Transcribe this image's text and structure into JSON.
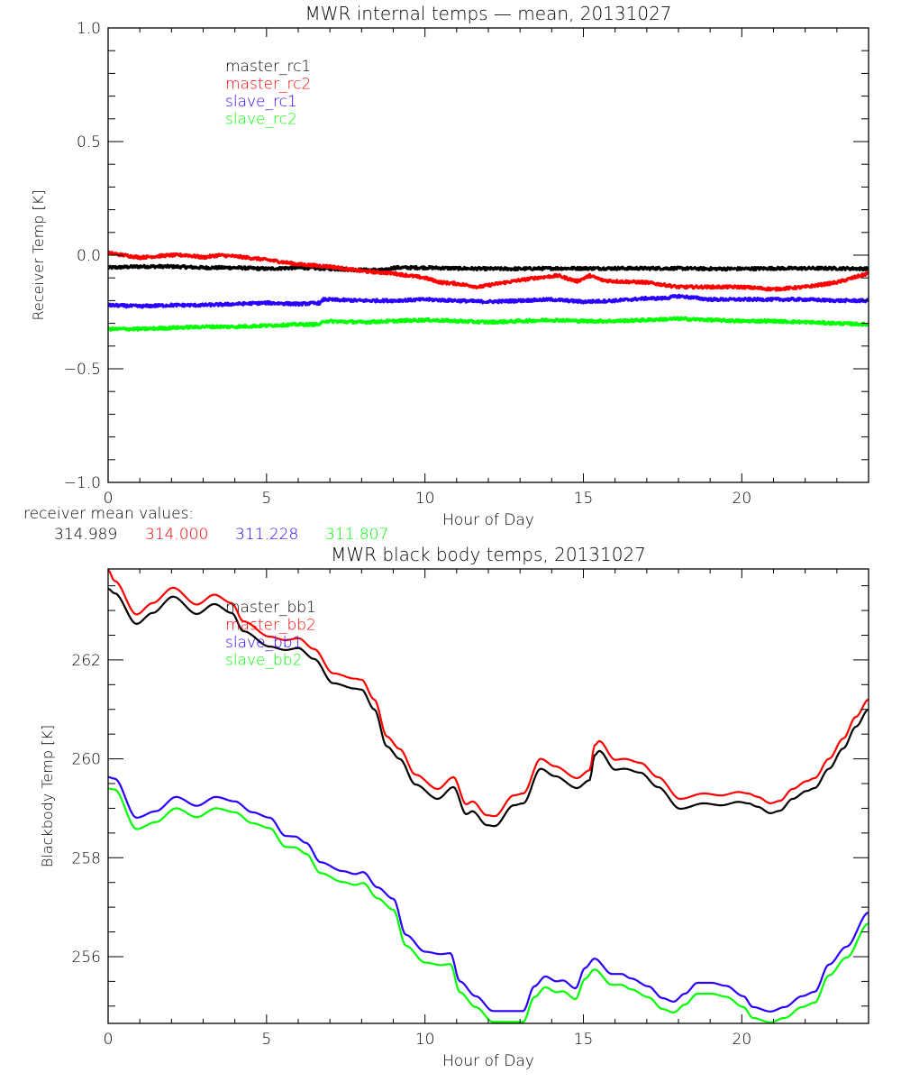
{
  "chart_data": [
    {
      "type": "line",
      "title": "MWR internal temps — mean, 20131027",
      "xlabel": "Hour of Day",
      "ylabel": "Receiver Temp [K]",
      "xlim": [
        0,
        24
      ],
      "ylim": [
        -1.0,
        1.0
      ],
      "xticks": [
        0,
        5,
        10,
        15,
        20
      ],
      "xtick_labels": [
        "0",
        "5",
        "10",
        "15",
        "20"
      ],
      "yticks": [
        -1.0,
        -0.5,
        0.0,
        0.5,
        1.0
      ],
      "ytick_labels": [
        "−1.0",
        "−0.5",
        "0.0",
        "0.5",
        "1.0"
      ],
      "grid": false,
      "legend_position": "top-left-inside",
      "series": [
        {
          "name": "master_rc1",
          "color": "#000000",
          "x": [
            0,
            1,
            2,
            3,
            4,
            5,
            6,
            7,
            8,
            8.8,
            9.0,
            10,
            11,
            12,
            13,
            14,
            15,
            16,
            17,
            18,
            19,
            20,
            21,
            22,
            23,
            24
          ],
          "y": [
            -0.055,
            -0.05,
            -0.05,
            -0.055,
            -0.055,
            -0.06,
            -0.055,
            -0.06,
            -0.065,
            -0.065,
            -0.055,
            -0.055,
            -0.058,
            -0.06,
            -0.06,
            -0.058,
            -0.058,
            -0.058,
            -0.058,
            -0.058,
            -0.06,
            -0.06,
            -0.058,
            -0.058,
            -0.058,
            -0.06
          ]
        },
        {
          "name": "master_rc2",
          "color": "#ff0000",
          "x": [
            0,
            0.5,
            1.0,
            1.5,
            2.0,
            2.5,
            3.0,
            3.5,
            4.0,
            5.0,
            6.0,
            7.0,
            7.5,
            8.0,
            9.0,
            10.0,
            10.5,
            11.0,
            11.7,
            12.3,
            13.0,
            13.5,
            14.2,
            14.8,
            15.2,
            15.6,
            16.0,
            17.0,
            18.0,
            19.0,
            20.0,
            21.0,
            22.0,
            22.5,
            23.0,
            23.5,
            24.0
          ],
          "y": [
            0.01,
            0.0,
            -0.01,
            -0.005,
            0.0,
            0.0,
            -0.01,
            0.0,
            -0.005,
            -0.02,
            -0.04,
            -0.05,
            -0.06,
            -0.07,
            -0.08,
            -0.1,
            -0.12,
            -0.125,
            -0.14,
            -0.125,
            -0.11,
            -0.1,
            -0.09,
            -0.115,
            -0.09,
            -0.11,
            -0.115,
            -0.12,
            -0.14,
            -0.14,
            -0.14,
            -0.15,
            -0.14,
            -0.13,
            -0.12,
            -0.1,
            -0.08
          ]
        },
        {
          "name": "slave_rc1",
          "color": "#2a00ff",
          "x": [
            0,
            1,
            2,
            3,
            4,
            5,
            6,
            6.7,
            6.8,
            8,
            9,
            10,
            11,
            12,
            13,
            14,
            15,
            16,
            17,
            17.5,
            18,
            19,
            20,
            21,
            22,
            23,
            24
          ],
          "y": [
            -0.22,
            -0.225,
            -0.22,
            -0.22,
            -0.215,
            -0.21,
            -0.215,
            -0.21,
            -0.195,
            -0.2,
            -0.2,
            -0.195,
            -0.2,
            -0.205,
            -0.2,
            -0.195,
            -0.205,
            -0.2,
            -0.19,
            -0.19,
            -0.18,
            -0.195,
            -0.195,
            -0.195,
            -0.195,
            -0.2,
            -0.2
          ]
        },
        {
          "name": "slave_rc2",
          "color": "#00ff00",
          "x": [
            0,
            1,
            2,
            3,
            4,
            5,
            6,
            6.7,
            6.8,
            8,
            9,
            10,
            11,
            12,
            13,
            14,
            15,
            16,
            17,
            18,
            19,
            20,
            21,
            22,
            23,
            24
          ],
          "y": [
            -0.325,
            -0.325,
            -0.32,
            -0.315,
            -0.315,
            -0.31,
            -0.305,
            -0.305,
            -0.29,
            -0.295,
            -0.29,
            -0.285,
            -0.29,
            -0.295,
            -0.29,
            -0.285,
            -0.29,
            -0.29,
            -0.285,
            -0.28,
            -0.285,
            -0.29,
            -0.29,
            -0.295,
            -0.3,
            -0.305
          ]
        }
      ]
    },
    {
      "type": "line",
      "title": "MWR black body temps, 20131027",
      "xlabel": "Hour of Day",
      "ylabel": "Blackbody Temp [K]",
      "xlim": [
        0,
        24
      ],
      "ylim": [
        254.65,
        263.84
      ],
      "xticks": [
        0,
        5,
        10,
        15,
        20
      ],
      "xtick_labels": [
        "0",
        "5",
        "10",
        "15",
        "20"
      ],
      "yticks": [
        256,
        258,
        260,
        262
      ],
      "ytick_labels": [
        "256",
        "258",
        "260",
        "262"
      ],
      "grid": false,
      "legend_position": "top-left-inside",
      "series": [
        {
          "name": "master_bb1",
          "color": "#000000",
          "x": [
            0,
            0.2,
            0.9,
            1.4,
            2.05,
            2.8,
            3.35,
            3.9,
            4.27,
            5.1,
            5.6,
            6.0,
            6.5,
            7.1,
            7.8,
            8.0,
            8.4,
            8.8,
            9.2,
            9.7,
            10.4,
            10.9,
            11.3,
            11.5,
            11.95,
            12.2,
            12.8,
            13.1,
            13.65,
            14.1,
            14.8,
            15.2,
            15.35,
            15.5,
            16.0,
            16.3,
            16.8,
            17.35,
            18.05,
            18.8,
            19.35,
            19.9,
            20.2,
            20.5,
            20.9,
            21.2,
            21.6,
            22.05,
            22.3,
            22.75,
            23.2,
            23.6,
            24.0
          ],
          "y": [
            263.44,
            263.35,
            262.73,
            262.95,
            263.28,
            262.93,
            263.13,
            262.95,
            262.58,
            262.27,
            262.2,
            262.24,
            262.02,
            261.53,
            261.42,
            261.4,
            261.0,
            260.25,
            260.0,
            259.48,
            259.19,
            259.43,
            258.88,
            258.94,
            258.66,
            258.64,
            259.06,
            259.1,
            259.8,
            259.65,
            259.41,
            259.57,
            260.07,
            260.16,
            259.78,
            259.8,
            259.72,
            259.43,
            258.99,
            259.1,
            259.06,
            259.13,
            259.1,
            259.03,
            258.9,
            258.95,
            259.19,
            259.35,
            259.41,
            259.8,
            260.21,
            260.65,
            261.0
          ]
        },
        {
          "name": "master_bb2",
          "color": "#ff0000",
          "x": [
            0,
            0.2,
            0.9,
            1.4,
            2.05,
            2.8,
            3.35,
            3.9,
            4.27,
            5.1,
            5.6,
            6.0,
            6.5,
            7.1,
            7.8,
            8.0,
            8.4,
            8.8,
            9.2,
            9.7,
            10.4,
            10.9,
            11.3,
            11.5,
            11.95,
            12.2,
            12.8,
            13.1,
            13.65,
            14.1,
            14.8,
            15.2,
            15.35,
            15.5,
            16.0,
            16.3,
            16.8,
            17.35,
            18.05,
            18.8,
            19.35,
            19.9,
            20.2,
            20.5,
            20.9,
            21.2,
            21.6,
            22.05,
            22.3,
            22.75,
            23.2,
            23.6,
            24.0
          ],
          "y": [
            263.82,
            263.6,
            262.92,
            263.15,
            263.46,
            263.12,
            263.32,
            263.15,
            262.78,
            262.47,
            262.4,
            262.44,
            262.22,
            261.73,
            261.62,
            261.6,
            261.2,
            260.45,
            260.2,
            259.68,
            259.39,
            259.63,
            259.08,
            259.14,
            258.86,
            258.84,
            259.26,
            259.3,
            260.0,
            259.85,
            259.61,
            259.77,
            260.27,
            260.36,
            259.98,
            260.0,
            259.92,
            259.63,
            259.19,
            259.3,
            259.26,
            259.33,
            259.3,
            259.23,
            259.1,
            259.15,
            259.39,
            259.55,
            259.61,
            260.0,
            260.41,
            260.85,
            261.2
          ]
        },
        {
          "name": "slave_bb1",
          "color": "#2a00ff",
          "x": [
            0,
            0.2,
            0.9,
            1.5,
            2.15,
            2.8,
            3.4,
            4.0,
            4.55,
            5.1,
            5.6,
            5.9,
            6.25,
            6.7,
            7.4,
            7.8,
            8.05,
            8.5,
            9.0,
            9.4,
            10.0,
            10.5,
            10.8,
            11.1,
            11.6,
            12.15,
            12.8,
            13.1,
            13.45,
            13.8,
            14.15,
            14.35,
            14.75,
            15.05,
            15.35,
            15.9,
            16.2,
            16.5,
            17.05,
            17.5,
            17.85,
            18.2,
            18.6,
            19.05,
            19.5,
            20.05,
            20.35,
            20.9,
            21.35,
            21.9,
            22.3,
            22.75,
            23.3,
            24.0
          ],
          "y": [
            259.63,
            259.6,
            258.81,
            258.94,
            259.23,
            259.05,
            259.23,
            259.14,
            258.92,
            258.81,
            258.44,
            258.43,
            258.3,
            257.91,
            257.73,
            257.67,
            257.71,
            257.4,
            257.17,
            256.44,
            256.1,
            256.05,
            256.07,
            255.5,
            255.2,
            254.9,
            254.9,
            254.9,
            255.4,
            255.6,
            255.5,
            255.52,
            255.36,
            255.77,
            255.96,
            255.65,
            255.65,
            255.56,
            255.4,
            255.16,
            255.09,
            255.25,
            255.47,
            255.47,
            255.41,
            255.2,
            254.98,
            254.89,
            254.98,
            255.2,
            255.29,
            255.84,
            256.2,
            256.89
          ]
        },
        {
          "name": "slave_bb2",
          "color": "#00ff00",
          "x": [
            0,
            0.2,
            0.9,
            1.5,
            2.15,
            2.8,
            3.4,
            4.0,
            4.55,
            5.1,
            5.6,
            5.9,
            6.25,
            6.7,
            7.4,
            7.8,
            8.05,
            8.5,
            9.0,
            9.4,
            10.0,
            10.5,
            10.8,
            11.1,
            11.6,
            12.15,
            12.8,
            13.1,
            13.45,
            13.8,
            14.15,
            14.35,
            14.75,
            15.05,
            15.35,
            15.9,
            16.2,
            16.5,
            17.05,
            17.5,
            17.85,
            18.2,
            18.6,
            19.05,
            19.5,
            20.05,
            20.35,
            20.9,
            21.35,
            21.9,
            22.3,
            22.75,
            23.3,
            24.0
          ],
          "y": [
            259.4,
            259.38,
            258.58,
            258.72,
            259.0,
            258.82,
            259.0,
            258.92,
            258.7,
            258.6,
            258.22,
            258.21,
            258.08,
            257.69,
            257.51,
            257.45,
            257.49,
            257.18,
            256.95,
            256.22,
            255.88,
            255.83,
            255.85,
            255.28,
            254.98,
            254.68,
            254.68,
            254.68,
            255.18,
            255.38,
            255.28,
            255.3,
            255.14,
            255.55,
            255.74,
            255.43,
            255.43,
            255.34,
            255.18,
            254.94,
            254.87,
            255.03,
            255.25,
            255.25,
            255.19,
            254.98,
            254.76,
            254.67,
            254.76,
            254.98,
            255.07,
            255.62,
            255.98,
            256.67
          ]
        }
      ]
    }
  ],
  "receiver_means": {
    "label": "receiver mean values:",
    "values": [
      {
        "text": "314.989",
        "color": "#000000"
      },
      {
        "text": "314.000",
        "color": "#ff0000"
      },
      {
        "text": "311.228",
        "color": "#2a00ff"
      },
      {
        "text": "311.807",
        "color": "#00ff00"
      }
    ]
  }
}
